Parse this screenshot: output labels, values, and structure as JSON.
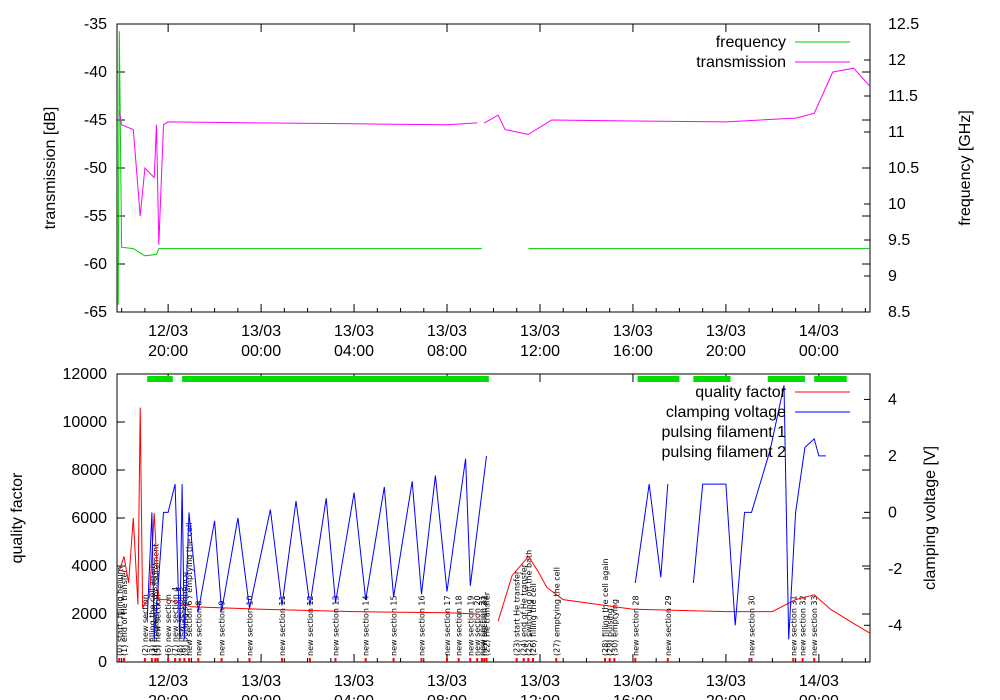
{
  "chart_data": [
    {
      "type": "line",
      "ylabel": "transmission [dB]",
      "y2label": "frequency [GHz]",
      "ylim": [
        -65,
        -35
      ],
      "y2lim": [
        8.5,
        12.5
      ],
      "yticks": [
        "-65",
        "-60",
        "-55",
        "-50",
        "-45",
        "-40",
        "-35"
      ],
      "y2ticks": [
        "8.5",
        "9",
        "9.5",
        "10",
        "10.5",
        "11",
        "11.5",
        "12",
        "12.5"
      ],
      "xlim_hours": [
        -2.2,
        30.2
      ],
      "xticks": [
        {
          "day": "12/03",
          "time": "20:00",
          "h": 0
        },
        {
          "day": "13/03",
          "time": "00:00",
          "h": 4
        },
        {
          "day": "13/03",
          "time": "04:00",
          "h": 8
        },
        {
          "day": "13/03",
          "time": "08:00",
          "h": 12
        },
        {
          "day": "13/03",
          "time": "12:00",
          "h": 16
        },
        {
          "day": "13/03",
          "time": "16:00",
          "h": 20
        },
        {
          "day": "13/03",
          "time": "20:00",
          "h": 24
        },
        {
          "day": "14/03",
          "time": "00:00",
          "h": 28
        }
      ],
      "legend_position": "top-right",
      "series": [
        {
          "name": "frequency",
          "axis": "y2",
          "color": "#00cc00",
          "points": [
            [
              -2.15,
              8.6
            ],
            [
              -2.1,
              12.4
            ],
            [
              -2.0,
              9.4
            ],
            [
              -1.5,
              9.38
            ],
            [
              -1.0,
              9.28
            ],
            [
              -0.5,
              9.3
            ],
            [
              -0.4,
              9.38
            ],
            [
              0,
              9.38
            ],
            [
              4,
              9.38
            ],
            [
              8,
              9.38
            ],
            [
              12,
              9.38
            ],
            [
              13.5,
              9.38
            ],
            null,
            [
              15.5,
              9.38
            ],
            [
              20,
              9.38
            ],
            [
              24,
              9.38
            ],
            [
              28,
              9.38
            ],
            [
              30.2,
              9.38
            ]
          ]
        },
        {
          "name": "transmission",
          "axis": "y",
          "color": "#ff00ff",
          "points": [
            [
              -2.1,
              -44
            ],
            [
              -2.0,
              -45.5
            ],
            [
              -1.5,
              -46
            ],
            [
              -1.2,
              -55
            ],
            [
              -1.0,
              -50
            ],
            [
              -0.6,
              -51
            ],
            [
              -0.5,
              -45.5
            ],
            [
              -0.4,
              -58
            ],
            [
              -0.2,
              -45.5
            ],
            [
              0,
              -45.2
            ],
            [
              4,
              -45.3
            ],
            [
              8,
              -45.4
            ],
            [
              12,
              -45.5
            ],
            [
              13.3,
              -45.3
            ],
            null,
            [
              13.6,
              -45.3
            ],
            [
              14.2,
              -44.5
            ],
            [
              14.5,
              -46
            ],
            [
              15.5,
              -46.5
            ],
            [
              16.5,
              -45
            ],
            [
              20,
              -45.1
            ],
            [
              24,
              -45.2
            ],
            [
              27,
              -44.8
            ],
            [
              27.8,
              -44.3
            ],
            [
              28.6,
              -40
            ],
            [
              29.5,
              -39.6
            ],
            [
              30.2,
              -41.5
            ]
          ]
        }
      ]
    },
    {
      "type": "line",
      "ylabel": "quality factor",
      "y2label": "clamping voltage [V]",
      "ylim": [
        0,
        12000
      ],
      "y2lim": [
        -5.3,
        4.9
      ],
      "yticks": [
        "0",
        "2000",
        "4000",
        "6000",
        "8000",
        "10000",
        "12000"
      ],
      "y2ticks": [
        "-4",
        "-2",
        "0",
        "2",
        "4"
      ],
      "xlim_hours": [
        -2.2,
        30.2
      ],
      "xticks": [
        {
          "day": "12/03",
          "time": "20:00",
          "h": 0
        },
        {
          "day": "13/03",
          "time": "00:00",
          "h": 4
        },
        {
          "day": "13/03",
          "time": "04:00",
          "h": 8
        },
        {
          "day": "13/03",
          "time": "08:00",
          "h": 12
        },
        {
          "day": "13/03",
          "time": "12:00",
          "h": 16
        },
        {
          "day": "13/03",
          "time": "16:00",
          "h": 20
        },
        {
          "day": "13/03",
          "time": "20:00",
          "h": 24
        },
        {
          "day": "14/03",
          "time": "00:00",
          "h": 28
        }
      ],
      "legend_position": "top-right",
      "series": [
        {
          "name": "quality factor",
          "axis": "y",
          "color": "#ff0000",
          "points": [
            [
              -2.1,
              3800
            ],
            [
              -1.9,
              4400
            ],
            [
              -1.7,
              3300
            ],
            [
              -1.5,
              6000
            ],
            [
              -1.3,
              2400
            ],
            [
              -1.2,
              10600
            ],
            [
              -1.1,
              2300
            ],
            [
              -0.8,
              2700
            ],
            [
              -0.6,
              6200
            ],
            [
              -0.4,
              2600
            ],
            [
              0,
              2600
            ],
            [
              1,
              2300
            ],
            [
              4,
              2200
            ],
            [
              8,
              2100
            ],
            [
              12,
              2050
            ],
            [
              13.3,
              2000
            ],
            null,
            [
              14.2,
              1700
            ],
            [
              14.8,
              3600
            ],
            [
              15.5,
              4400
            ],
            [
              15.9,
              3800
            ],
            [
              16.3,
              3100
            ],
            [
              17,
              2600
            ],
            [
              20,
              2200
            ],
            [
              24,
              2100
            ],
            [
              26,
              2100
            ],
            [
              27,
              2600
            ],
            [
              27.8,
              2800
            ],
            [
              28.5,
              2200
            ],
            [
              29.5,
              1600
            ],
            [
              30.2,
              1200
            ]
          ]
        },
        {
          "name": "clamping voltage",
          "axis": "y2",
          "color": "#0000ff",
          "points": [
            [
              -0.9,
              -3.8
            ],
            [
              -0.7,
              0.0
            ],
            [
              -0.6,
              -4.5
            ],
            [
              -0.2,
              0.0
            ],
            [
              0,
              0.0
            ],
            [
              0.3,
              1.0
            ],
            [
              0.5,
              -4.5
            ],
            [
              0.6,
              1.0
            ],
            [
              0.7,
              -4.5
            ],
            [
              0.9,
              0.0
            ],
            [
              1.3,
              -3.5
            ],
            [
              2.0,
              -0.3
            ],
            [
              2.3,
              -3.5
            ],
            [
              3.0,
              -0.2
            ],
            [
              3.5,
              -3.4
            ],
            [
              4.4,
              0.1
            ],
            [
              4.9,
              -3.3
            ],
            [
              5.5,
              0.4
            ],
            [
              6.1,
              -3.3
            ],
            [
              6.8,
              0.5
            ],
            [
              7.2,
              -3.2
            ],
            [
              8.0,
              0.7
            ],
            [
              8.5,
              -3.1
            ],
            [
              9.3,
              0.9
            ],
            [
              9.7,
              -3.0
            ],
            [
              10.5,
              1.1
            ],
            [
              10.9,
              -2.9
            ],
            [
              11.5,
              1.3
            ],
            [
              12.0,
              -2.8
            ],
            [
              12.8,
              1.9
            ],
            [
              13.0,
              -2.6
            ],
            [
              13.7,
              2.0
            ],
            null,
            [
              20.1,
              -2.5
            ],
            [
              20.7,
              1.0
            ],
            [
              21.2,
              -2.3
            ],
            [
              21.5,
              1.0
            ],
            null,
            [
              22.6,
              -2.5
            ],
            [
              23.0,
              1.0
            ],
            [
              24,
              1.0
            ],
            [
              24.4,
              -4.0
            ],
            [
              24.8,
              0.0
            ],
            [
              25.1,
              0.0
            ],
            [
              25.9,
              2.2
            ],
            [
              26.5,
              4.5
            ],
            [
              26.7,
              -4.5
            ],
            [
              27.0,
              0.0
            ],
            [
              27.4,
              2.3
            ],
            [
              27.8,
              2.6
            ],
            [
              28.0,
              2.0
            ],
            [
              28.3,
              2.0
            ]
          ]
        }
      ],
      "legend_extra": [
        "pulsing filament 1",
        "pulsing filament 2"
      ],
      "filament_bars": [
        [
          -0.9,
          0.2
        ],
        [
          0.6,
          13.8
        ],
        [
          20.2,
          22.0
        ],
        [
          22.6,
          24.2
        ],
        [
          25.8,
          27.4
        ],
        [
          27.8,
          29.2
        ]
      ],
      "annotations": [
        {
          "h": -2.1,
          "text": "(0) start: filling helium"
        },
        {
          "h": -1.9,
          "text": "(1) end of He transfer"
        },
        {
          "h": -1.0,
          "text": "(2) new section"
        },
        {
          "h": -0.7,
          "text": "(3) filling the cell again"
        },
        {
          "h": -0.55,
          "text": "(4) frequency measurement"
        },
        {
          "h": -0.45,
          "text": "(5) new section"
        },
        {
          "h": 0.0,
          "text": "(6) new section"
        },
        {
          "h": 0.3,
          "text": "(7) new section 4"
        },
        {
          "h": 0.5,
          "text": "(8) new section 5"
        },
        {
          "h": 0.7,
          "text": "(9) pulsing sequence"
        },
        {
          "h": 0.9,
          "text": "new section 6 / emptying the cell"
        },
        {
          "h": 1.3,
          "text": "new section 8"
        },
        {
          "h": 2.3,
          "text": "new section 9"
        },
        {
          "h": 3.5,
          "text": "new section 10"
        },
        {
          "h": 4.9,
          "text": "new section 11"
        },
        {
          "h": 6.1,
          "text": "new section 12"
        },
        {
          "h": 7.2,
          "text": "new section 13"
        },
        {
          "h": 8.5,
          "text": "new section 14"
        },
        {
          "h": 9.7,
          "text": "new section 15"
        },
        {
          "h": 10.9,
          "text": "new section 16"
        },
        {
          "h": 12.0,
          "text": "new section 17"
        },
        {
          "h": 12.5,
          "text": "new section 18"
        },
        {
          "h": 13.0,
          "text": "new section 19"
        },
        {
          "h": 13.3,
          "text": "new section 20"
        },
        {
          "h": 13.5,
          "text": "new section 21"
        },
        {
          "h": 13.6,
          "text": "new section 22"
        },
        {
          "h": 13.7,
          "text": "(22) He transfer"
        },
        {
          "h": 15.0,
          "text": "(23) start He transfer"
        },
        {
          "h": 15.3,
          "text": "(24) end of He transfer"
        },
        {
          "h": 15.5,
          "text": "(25) switching off the bath"
        },
        {
          "h": 15.7,
          "text": "(26) filling the cell"
        },
        {
          "h": 16.7,
          "text": "(27) emptying the cell"
        },
        {
          "h": 18.8,
          "text": "(28) filling the cell again"
        },
        {
          "h": 19.0,
          "text": "(29) pulsing"
        },
        {
          "h": 19.2,
          "text": "(30) emptying"
        },
        {
          "h": 20.1,
          "text": "new section 28"
        },
        {
          "h": 21.5,
          "text": "new section 29"
        },
        {
          "h": 25.1,
          "text": "new section 30"
        },
        {
          "h": 26.9,
          "text": "new section 31"
        },
        {
          "h": 27.3,
          "text": "new section 32"
        },
        {
          "h": 27.8,
          "text": "new section 33"
        }
      ]
    }
  ]
}
